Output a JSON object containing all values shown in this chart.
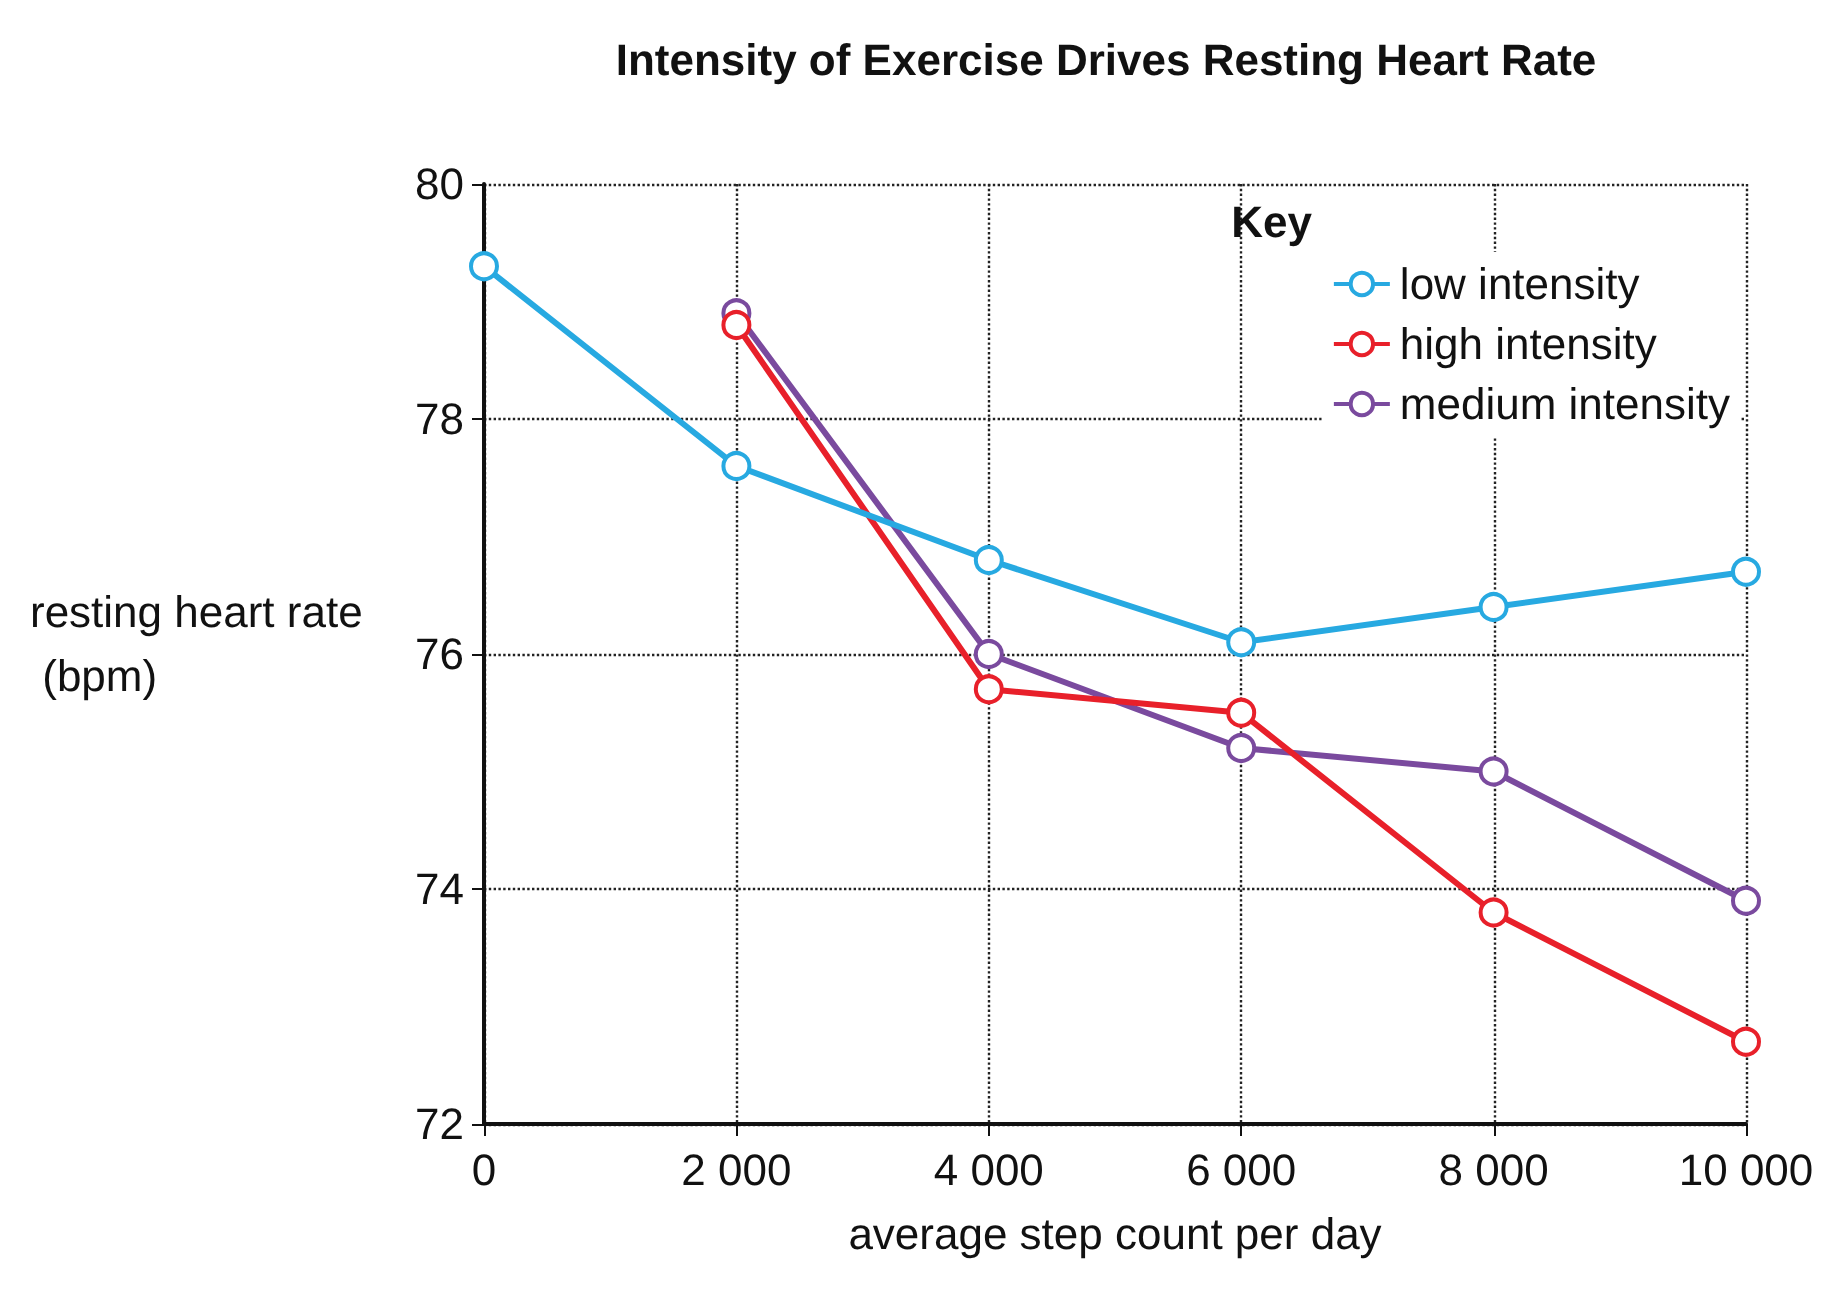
{
  "chart_data": {
    "type": "line",
    "title": "Intensity of Exercise Drives Resting Heart Rate",
    "xlabel": "average step count per day",
    "ylabel": "resting heart rate (bpm)",
    "legend_title": "Key",
    "x": [
      0,
      2000,
      4000,
      6000,
      8000,
      10000
    ],
    "series": [
      {
        "name": "low intensity",
        "color": "#27a9e1",
        "values": [
          79.3,
          77.6,
          76.8,
          76.1,
          76.4,
          76.7
        ]
      },
      {
        "name": "high intensity",
        "color": "#e8202a",
        "values": [
          null,
          78.8,
          75.7,
          75.5,
          73.8,
          72.7
        ]
      },
      {
        "name": "medium intensity",
        "color": "#7a4a9e",
        "values": [
          null,
          78.9,
          76.0,
          75.2,
          75.0,
          73.9
        ]
      }
    ],
    "xlim": [
      0,
      10000
    ],
    "xticks": [
      0,
      {
        "value": 2000,
        "label": "2 000"
      },
      {
        "value": 4000,
        "label": "4 000"
      },
      {
        "value": 6000,
        "label": "6 000"
      },
      {
        "value": 8000,
        "label": "8 000"
      },
      {
        "value": 10000,
        "label": "10 000"
      }
    ],
    "ylim": [
      72,
      80
    ],
    "yticks": [
      72,
      74,
      76,
      78,
      80
    ],
    "grid": true,
    "legend": "top right",
    "marker": "circle",
    "line_style": "solid"
  }
}
